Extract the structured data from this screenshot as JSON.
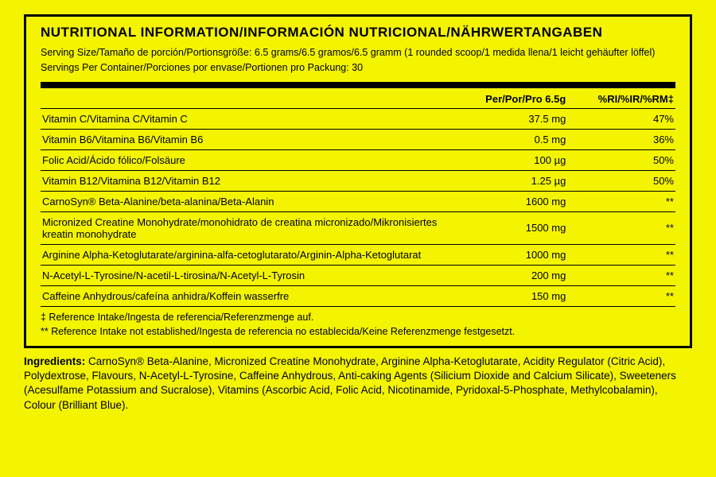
{
  "colors": {
    "background": "#f4f400",
    "border": "#000000",
    "text": "#000000",
    "thick_bar": "#000000",
    "row_border": "#000000"
  },
  "typography": {
    "title_fontsize": 17,
    "title_weight": "bold",
    "body_fontsize": 13,
    "serving_fontsize": 12.5,
    "ingredients_fontsize": 13.5,
    "font_family": "Arial Narrow"
  },
  "layout": {
    "panel_border_width": 3,
    "thick_bar_height": 8,
    "row_border_width": 1
  },
  "title": "NUTRITIONAL INFORMATION/INFORMACIÓN NUTRICIONAL/NÄHRWERTANGABEN",
  "serving": {
    "size": "Serving Size/Tamaño de porción/Portionsgröße: 6.5 grams/6.5 gramos/6.5 gramm (1 rounded scoop/1 medida llena/1 leicht gehäufter löffel)",
    "per_container": "Servings Per Container/Porciones por envase/Portionen pro Packung: 30"
  },
  "columns": {
    "name": "",
    "per": "Per/Por/Pro 6.5g",
    "ri": "%RI/%IR/%RM‡"
  },
  "rows": [
    {
      "name": "Vitamin C/Vitamina C/Vitamin C",
      "per": "37.5 mg",
      "ri": "47%"
    },
    {
      "name": "Vitamin B6/Vitamina B6/Vitamin B6",
      "per": "0.5 mg",
      "ri": "36%"
    },
    {
      "name": "Folic Acid/Ácido fólico/Folsäure",
      "per": "100 µg",
      "ri": "50%"
    },
    {
      "name": "Vitamin B12/Vitamina B12/Vitamin B12",
      "per": "1.25 µg",
      "ri": "50%"
    },
    {
      "name": "CarnoSyn® Beta-Alanine/beta-alanina/Beta-Alanin",
      "per": "1600 mg",
      "ri": "**"
    },
    {
      "name": "Micronized Creatine Monohydrate/monohidrato de creatina micronizado/Mikronisiertes kreatin monohydrate",
      "per": "1500 mg",
      "ri": "**"
    },
    {
      "name": "Arginine Alpha-Ketoglutarate/arginina-alfa-cetoglutarato/Arginin-Alpha-Ketoglutarat",
      "per": "1000 mg",
      "ri": "**"
    },
    {
      "name": "N-Acetyl-L-Tyrosine/N-acetil-L-tirosina/N-Acetyl-L-Tyrosin",
      "per": "200 mg",
      "ri": "**"
    },
    {
      "name": "Caffeine Anhydrous/cafeína anhidra/Koffein wasserfre",
      "per": "150 mg",
      "ri": "**"
    }
  ],
  "footnotes": {
    "f1": "‡ Reference Intake/Ingesta de referencia/Referenzmenge auf.",
    "f2": "** Reference Intake not established/Ingesta de referencia no establecida/Keine Referenzmenge festgesetzt."
  },
  "ingredients": {
    "label": "Ingredients:",
    "text": " CarnoSyn® Beta-Alanine, Micronized Creatine Monohydrate, Arginine Alpha-Ketoglutarate, Acidity Regulator (Citric Acid), Polydextrose, Flavours, N-Acetyl-L-Tyrosine, Caffeine Anhydrous, Anti-caking Agents (Silicium Dioxide and Calcium Silicate), Sweeteners (Acesulfame Potassium and Sucralose), Vitamins (Ascorbic Acid, Folic Acid, Nicotinamide, Pyridoxal-5-Phosphate, Methylcobalamin), Colour (Brilliant Blue)."
  }
}
